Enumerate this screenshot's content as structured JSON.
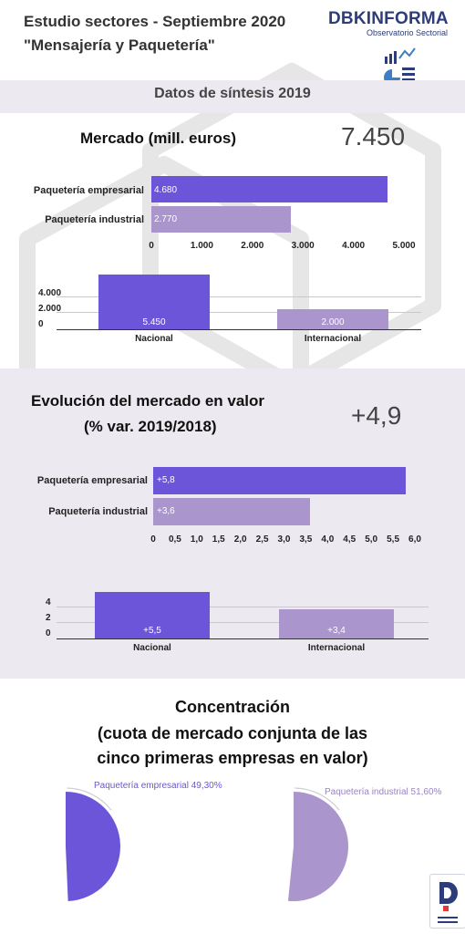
{
  "header": {
    "title": "Estudio sectores - Septiembre 2020",
    "subtitle": "\"Mensajería y Paquetería\"",
    "logo_brand_a": "DBK",
    "logo_brand_b": "INFORMA",
    "logo_sub": "Observatorio Sectorial"
  },
  "synthesis": {
    "title": "Datos de síntesis 2019"
  },
  "colors": {
    "primary": "#6c55d9",
    "secondary": "#ab95cd",
    "band": "#ece9f0",
    "brand": "#2d3d7a"
  },
  "market": {
    "title": "Mercado (mill. euros)",
    "total": "7.450"
  },
  "evolution": {
    "title_line1": "Evolución del mercado en valor",
    "title_line2": "(% var. 2019/2018)",
    "total": "+4,9"
  },
  "concentration": {
    "title_line1": "Concentración",
    "title_line2": "(cuota de mercado conjunta de las",
    "title_line3": "cinco primeras empresas en valor)"
  },
  "chart_data": [
    {
      "type": "bar",
      "orientation": "horizontal",
      "categories": [
        "Paquetería empresarial",
        "Paquetería industrial"
      ],
      "values": [
        4680,
        2770
      ],
      "value_labels": [
        "4.680",
        "2.770"
      ],
      "ticks": [
        "0",
        "1.000",
        "2.000",
        "3.000",
        "4.000",
        "5.000"
      ],
      "xlim": [
        0,
        5000
      ]
    },
    {
      "type": "bar",
      "orientation": "vertical",
      "categories": [
        "Nacional",
        "Internacional"
      ],
      "values": [
        5450,
        2000
      ],
      "value_labels": [
        "5.450",
        "2.000"
      ],
      "ticks": [
        "0",
        "2.000",
        "4.000"
      ],
      "ylim": [
        0,
        5000
      ]
    },
    {
      "type": "bar",
      "orientation": "horizontal",
      "categories": [
        "Paquetería empresarial",
        "Paquetería industrial"
      ],
      "values": [
        5.8,
        3.6
      ],
      "value_labels": [
        "+5,8",
        "+3,6"
      ],
      "ticks": [
        "0",
        "0,5",
        "1,0",
        "1,5",
        "2,0",
        "2,5",
        "3,0",
        "3,5",
        "4,0",
        "4,5",
        "5,0",
        "5,5",
        "6,0"
      ],
      "xlim": [
        0,
        6
      ]
    },
    {
      "type": "bar",
      "orientation": "vertical",
      "categories": [
        "Nacional",
        "Internacional"
      ],
      "values": [
        5.5,
        3.4
      ],
      "value_labels": [
        "+5,5",
        "+3,4"
      ],
      "ticks": [
        "0",
        "2",
        "4"
      ],
      "ylim": [
        0,
        6
      ]
    },
    {
      "type": "pie",
      "labels": [
        "Paquetería empresarial 49,30%",
        "Paquetería industrial 51,60%"
      ],
      "values": [
        49.3,
        51.6
      ]
    }
  ]
}
